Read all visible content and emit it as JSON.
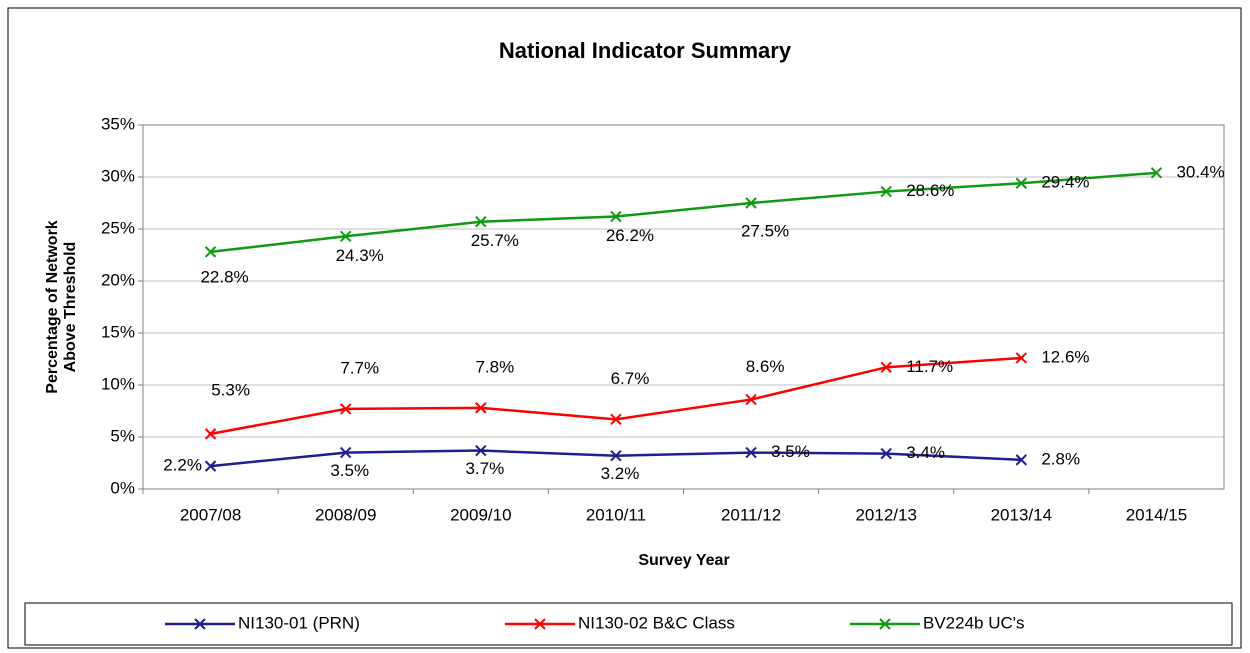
{
  "chart_data": {
    "type": "line",
    "title": "National Indicator Summary",
    "x_label": "Survey Year",
    "y_label": [
      "Percentage of Network",
      "Above Threshold"
    ],
    "categories": [
      "2007/08",
      "2008/09",
      "2009/10",
      "2010/11",
      "2011/12",
      "2012/13",
      "2013/14",
      "2014/15"
    ],
    "series": [
      {
        "name": "NI130-01 (PRN)",
        "color": "#1f1f8f",
        "values": [
          2.2,
          3.5,
          3.7,
          3.2,
          3.5,
          3.4,
          2.8,
          null
        ],
        "value_labels": [
          "2.2%",
          "3.5%",
          "3.7%",
          "3.2%",
          "3.5%",
          "3.4%",
          "2.8%",
          null
        ]
      },
      {
        "name": "NI130-02 B&C Class",
        "color": "#ff0000",
        "values": [
          5.3,
          7.7,
          7.8,
          6.7,
          8.6,
          11.7,
          12.6,
          null
        ],
        "value_labels": [
          "5.3%",
          "7.7%",
          "7.8%",
          "6.7%",
          "8.6%",
          "11.7%",
          "12.6%",
          null
        ]
      },
      {
        "name": "BV224b UC's",
        "color": "#119911",
        "values": [
          22.8,
          24.3,
          25.7,
          26.2,
          27.5,
          28.6,
          29.4,
          30.4
        ],
        "value_labels": [
          "22.8%",
          "24.3%",
          "25.7%",
          "26.2%",
          "27.5%",
          "28.6%",
          "29.4%",
          "30.4%"
        ]
      }
    ],
    "ylim": [
      0,
      35
    ],
    "yticks": [
      {
        "value": 0,
        "label": "0%"
      },
      {
        "value": 5,
        "label": "5%"
      },
      {
        "value": 10,
        "label": "10%"
      },
      {
        "value": 15,
        "label": "15%"
      },
      {
        "value": 20,
        "label": "20%"
      },
      {
        "value": 25,
        "label": "25%"
      },
      {
        "value": 30,
        "label": "30%"
      },
      {
        "value": 35,
        "label": "35%"
      }
    ],
    "grid": true,
    "legend": "bottom"
  }
}
